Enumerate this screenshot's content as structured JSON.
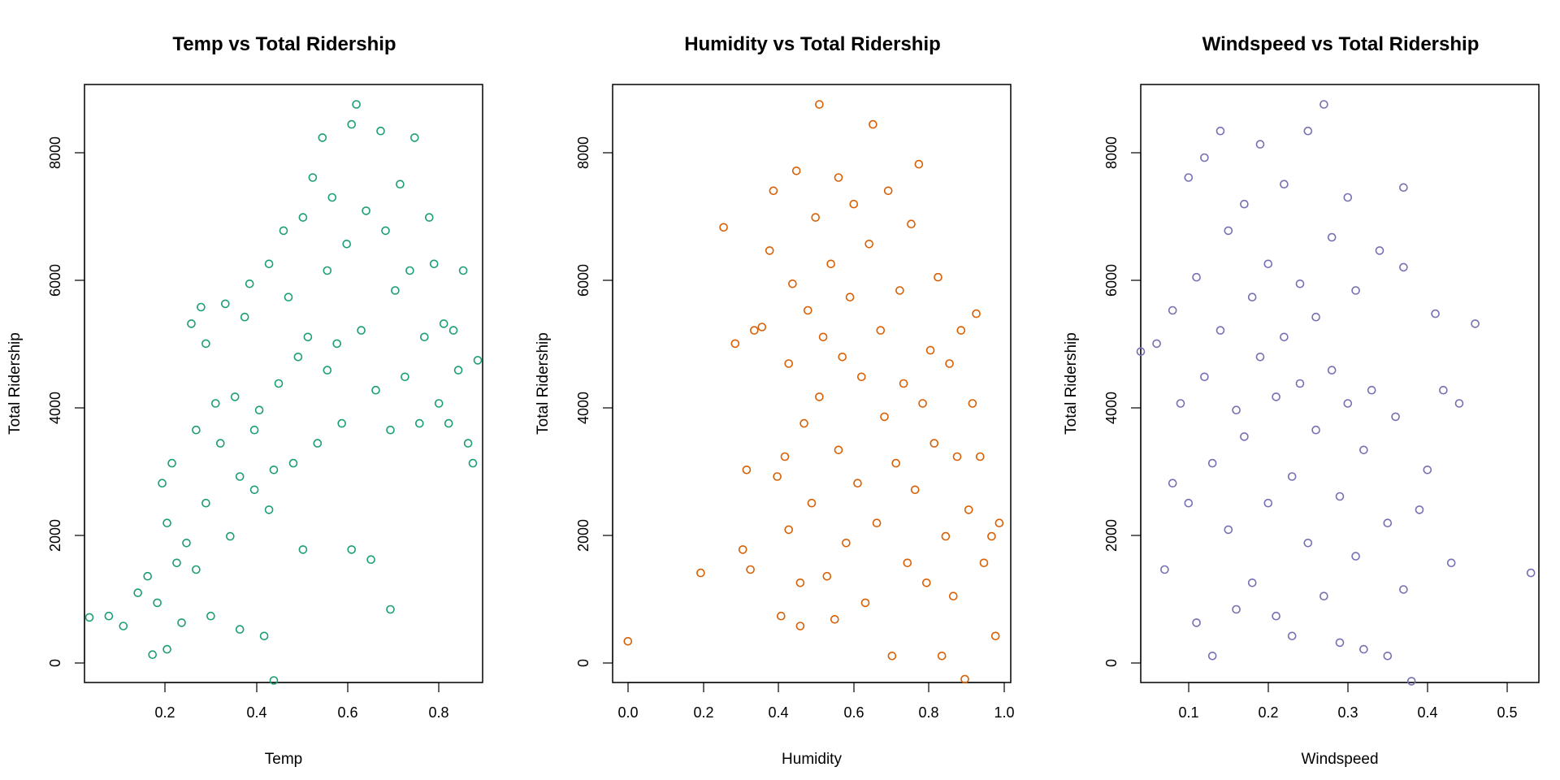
{
  "chart_data": [
    {
      "type": "scatter",
      "title": "Temp vs Total Ridership",
      "xlabel": "Temp",
      "ylabel": "Total Ridership",
      "xlim": [
        0.05,
        0.87
      ],
      "ylim": [
        0,
        9000
      ],
      "xticks": [
        0.2,
        0.4,
        0.6,
        0.8
      ],
      "yticks": [
        0,
        2000,
        4000,
        6000,
        8000
      ],
      "xtick_labels": [
        "0.2",
        "0.4",
        "0.6",
        "0.8"
      ],
      "ytick_labels": [
        "0",
        "2000",
        "4000",
        "6000",
        "8000"
      ],
      "grid": false,
      "color": "#1b9e77",
      "points": [
        [
          0.06,
          980
        ],
        [
          0.1,
          1000
        ],
        [
          0.13,
          850
        ],
        [
          0.16,
          1350
        ],
        [
          0.18,
          1600
        ],
        [
          0.19,
          420
        ],
        [
          0.2,
          1200
        ],
        [
          0.21,
          3000
        ],
        [
          0.22,
          2400
        ],
        [
          0.22,
          500
        ],
        [
          0.23,
          3300
        ],
        [
          0.24,
          1800
        ],
        [
          0.25,
          900
        ],
        [
          0.26,
          2100
        ],
        [
          0.27,
          5400
        ],
        [
          0.28,
          1700
        ],
        [
          0.28,
          3800
        ],
        [
          0.29,
          5650
        ],
        [
          0.3,
          5100
        ],
        [
          0.3,
          2700
        ],
        [
          0.31,
          1000
        ],
        [
          0.32,
          4200
        ],
        [
          0.33,
          3600
        ],
        [
          0.34,
          5700
        ],
        [
          0.35,
          2200
        ],
        [
          0.36,
          4300
        ],
        [
          0.37,
          800
        ],
        [
          0.37,
          3100
        ],
        [
          0.38,
          5500
        ],
        [
          0.39,
          6000
        ],
        [
          0.4,
          2900
        ],
        [
          0.4,
          3800
        ],
        [
          0.41,
          4100
        ],
        [
          0.42,
          700
        ],
        [
          0.43,
          6300
        ],
        [
          0.43,
          2600
        ],
        [
          0.44,
          3200
        ],
        [
          0.44,
          30
        ],
        [
          0.45,
          4500
        ],
        [
          0.46,
          6800
        ],
        [
          0.47,
          5800
        ],
        [
          0.48,
          3300
        ],
        [
          0.49,
          4900
        ],
        [
          0.5,
          7000
        ],
        [
          0.5,
          2000
        ],
        [
          0.51,
          5200
        ],
        [
          0.52,
          7600
        ],
        [
          0.53,
          3600
        ],
        [
          0.54,
          8200
        ],
        [
          0.55,
          6200
        ],
        [
          0.55,
          4700
        ],
        [
          0.56,
          7300
        ],
        [
          0.57,
          5100
        ],
        [
          0.58,
          3900
        ],
        [
          0.59,
          6600
        ],
        [
          0.6,
          8400
        ],
        [
          0.6,
          2000
        ],
        [
          0.61,
          8700
        ],
        [
          0.62,
          5300
        ],
        [
          0.63,
          7100
        ],
        [
          0.64,
          1850
        ],
        [
          0.65,
          4400
        ],
        [
          0.66,
          8300
        ],
        [
          0.67,
          6800
        ],
        [
          0.68,
          3800
        ],
        [
          0.68,
          1100
        ],
        [
          0.69,
          5900
        ],
        [
          0.7,
          7500
        ],
        [
          0.71,
          4600
        ],
        [
          0.72,
          6200
        ],
        [
          0.73,
          8200
        ],
        [
          0.74,
          3900
        ],
        [
          0.75,
          5200
        ],
        [
          0.76,
          7000
        ],
        [
          0.77,
          6300
        ],
        [
          0.78,
          4200
        ],
        [
          0.79,
          5400
        ],
        [
          0.8,
          3900
        ],
        [
          0.81,
          5300
        ],
        [
          0.82,
          4700
        ],
        [
          0.83,
          6200
        ],
        [
          0.84,
          3600
        ],
        [
          0.85,
          3300
        ],
        [
          0.86,
          4850
        ]
      ]
    },
    {
      "type": "scatter",
      "title": "Humidity vs Total Ridership",
      "xlabel": "Humidity",
      "ylabel": "Total Ridership",
      "xlim": [
        -0.04,
        1.0
      ],
      "ylim": [
        0,
        9000
      ],
      "xticks": [
        0.0,
        0.2,
        0.4,
        0.6,
        0.8,
        1.0
      ],
      "yticks": [
        0,
        2000,
        4000,
        6000,
        8000
      ],
      "xtick_labels": [
        "0.0",
        "0.2",
        "0.4",
        "0.6",
        "0.8",
        "1.0"
      ],
      "ytick_labels": [
        "0",
        "2000",
        "4000",
        "6000",
        "8000"
      ],
      "grid": false,
      "color": "#d95f02",
      "points": [
        [
          0.0,
          620
        ],
        [
          0.19,
          1650
        ],
        [
          0.25,
          6850
        ],
        [
          0.28,
          5100
        ],
        [
          0.3,
          2000
        ],
        [
          0.31,
          3200
        ],
        [
          0.32,
          1700
        ],
        [
          0.33,
          5300
        ],
        [
          0.35,
          5350
        ],
        [
          0.37,
          6500
        ],
        [
          0.38,
          7400
        ],
        [
          0.39,
          3100
        ],
        [
          0.4,
          1000
        ],
        [
          0.41,
          3400
        ],
        [
          0.42,
          4800
        ],
        [
          0.42,
          2300
        ],
        [
          0.43,
          6000
        ],
        [
          0.44,
          7700
        ],
        [
          0.45,
          1500
        ],
        [
          0.45,
          850
        ],
        [
          0.46,
          3900
        ],
        [
          0.47,
          5600
        ],
        [
          0.48,
          2700
        ],
        [
          0.49,
          7000
        ],
        [
          0.5,
          8700
        ],
        [
          0.5,
          4300
        ],
        [
          0.51,
          5200
        ],
        [
          0.52,
          1600
        ],
        [
          0.53,
          6300
        ],
        [
          0.54,
          950
        ],
        [
          0.55,
          7600
        ],
        [
          0.55,
          3500
        ],
        [
          0.56,
          4900
        ],
        [
          0.57,
          2100
        ],
        [
          0.58,
          5800
        ],
        [
          0.59,
          7200
        ],
        [
          0.6,
          3000
        ],
        [
          0.61,
          4600
        ],
        [
          0.62,
          1200
        ],
        [
          0.63,
          6600
        ],
        [
          0.64,
          8400
        ],
        [
          0.65,
          2400
        ],
        [
          0.66,
          5300
        ],
        [
          0.67,
          4000
        ],
        [
          0.68,
          7400
        ],
        [
          0.69,
          400
        ],
        [
          0.7,
          3300
        ],
        [
          0.71,
          5900
        ],
        [
          0.72,
          4500
        ],
        [
          0.73,
          1800
        ],
        [
          0.74,
          6900
        ],
        [
          0.75,
          2900
        ],
        [
          0.76,
          7800
        ],
        [
          0.77,
          4200
        ],
        [
          0.78,
          1500
        ],
        [
          0.79,
          5000
        ],
        [
          0.8,
          3600
        ],
        [
          0.81,
          6100
        ],
        [
          0.82,
          400
        ],
        [
          0.83,
          2200
        ],
        [
          0.84,
          4800
        ],
        [
          0.85,
          1300
        ],
        [
          0.86,
          3400
        ],
        [
          0.87,
          5300
        ],
        [
          0.88,
          50
        ],
        [
          0.89,
          2600
        ],
        [
          0.9,
          4200
        ],
        [
          0.91,
          5550
        ],
        [
          0.92,
          3400
        ],
        [
          0.93,
          1800
        ],
        [
          0.95,
          2200
        ],
        [
          0.96,
          700
        ],
        [
          0.97,
          2400
        ]
      ]
    },
    {
      "type": "scatter",
      "title": "Windspeed vs Total Ridership",
      "xlabel": "Windspeed",
      "ylabel": "Total Ridership",
      "xlim": [
        0.02,
        0.52
      ],
      "ylim": [
        0,
        9000
      ],
      "xticks": [
        0.1,
        0.2,
        0.3,
        0.4,
        0.5
      ],
      "yticks": [
        0,
        2000,
        4000,
        6000,
        8000
      ],
      "xtick_labels": [
        "0.1",
        "0.2",
        "0.3",
        "0.4",
        "0.5"
      ],
      "ytick_labels": [
        "0",
        "2000",
        "4000",
        "6000",
        "8000"
      ],
      "grid": false,
      "color": "#7570b3",
      "points": [
        [
          0.02,
          4980
        ],
        [
          0.04,
          5100
        ],
        [
          0.05,
          1700
        ],
        [
          0.06,
          3000
        ],
        [
          0.06,
          5600
        ],
        [
          0.07,
          4200
        ],
        [
          0.08,
          7600
        ],
        [
          0.08,
          2700
        ],
        [
          0.09,
          900
        ],
        [
          0.09,
          6100
        ],
        [
          0.1,
          4600
        ],
        [
          0.1,
          7900
        ],
        [
          0.11,
          3300
        ],
        [
          0.11,
          400
        ],
        [
          0.12,
          5300
        ],
        [
          0.12,
          8300
        ],
        [
          0.13,
          2300
        ],
        [
          0.13,
          6800
        ],
        [
          0.14,
          4100
        ],
        [
          0.14,
          1100
        ],
        [
          0.15,
          7200
        ],
        [
          0.15,
          3700
        ],
        [
          0.16,
          5800
        ],
        [
          0.16,
          1500
        ],
        [
          0.17,
          4900
        ],
        [
          0.17,
          8100
        ],
        [
          0.18,
          2700
        ],
        [
          0.18,
          6300
        ],
        [
          0.19,
          4300
        ],
        [
          0.19,
          1000
        ],
        [
          0.2,
          5200
        ],
        [
          0.2,
          7500
        ],
        [
          0.21,
          3100
        ],
        [
          0.21,
          700
        ],
        [
          0.22,
          6000
        ],
        [
          0.22,
          4500
        ],
        [
          0.23,
          8300
        ],
        [
          0.23,
          2100
        ],
        [
          0.24,
          5500
        ],
        [
          0.24,
          3800
        ],
        [
          0.25,
          8700
        ],
        [
          0.25,
          1300
        ],
        [
          0.26,
          4700
        ],
        [
          0.26,
          6700
        ],
        [
          0.27,
          2800
        ],
        [
          0.27,
          600
        ],
        [
          0.28,
          7300
        ],
        [
          0.28,
          4200
        ],
        [
          0.29,
          1900
        ],
        [
          0.29,
          5900
        ],
        [
          0.3,
          3500
        ],
        [
          0.3,
          500
        ],
        [
          0.31,
          4400
        ],
        [
          0.32,
          6500
        ],
        [
          0.33,
          2400
        ],
        [
          0.33,
          400
        ],
        [
          0.34,
          4000
        ],
        [
          0.35,
          7450
        ],
        [
          0.35,
          6250
        ],
        [
          0.35,
          1400
        ],
        [
          0.36,
          20
        ],
        [
          0.37,
          2600
        ],
        [
          0.38,
          3200
        ],
        [
          0.39,
          5550
        ],
        [
          0.4,
          4400
        ],
        [
          0.41,
          1800
        ],
        [
          0.42,
          4200
        ],
        [
          0.44,
          5400
        ],
        [
          0.51,
          1650
        ]
      ]
    }
  ]
}
